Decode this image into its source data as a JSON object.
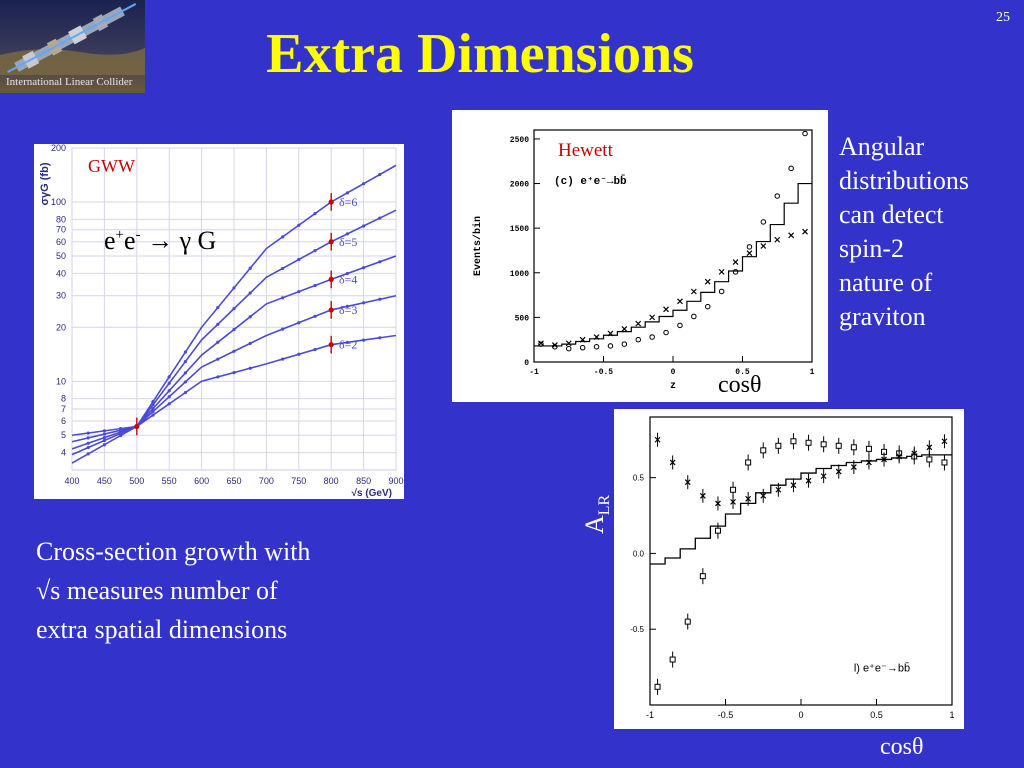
{
  "slide": {
    "title": "Extra Dimensions",
    "number": "25"
  },
  "logo": {
    "caption": "International Linear Collider"
  },
  "gww_plot": {
    "tag": "GWW",
    "process": {
      "e1": "e",
      "sup1": "+",
      "e2": "e",
      "sup2": "-",
      "rest": " → γ G"
    }
  },
  "hewett_plot": {
    "tag": "Hewett",
    "xlabel_below": "cosθ"
  },
  "texts": {
    "angular": [
      "Angular",
      "distributions",
      "can detect",
      "spin-2",
      "nature of",
      "graviton"
    ],
    "bottom": [
      "Cross-section growth with",
      "√s measures number of",
      "extra spatial dimensions"
    ],
    "alr_label": {
      "main": "A",
      "sub": "LR"
    },
    "cos_bottom": "cosθ"
  },
  "colors": {
    "background": "#3333cc",
    "title": "#ffff00",
    "accent_red": "#cc0000",
    "curve_blue": "#4a4ad8"
  },
  "chart_data": [
    {
      "type": "line",
      "ylabel": "σγG (fb)",
      "xlabel": "√s (GeV)",
      "xscale": "linear",
      "yscale": "log",
      "xlim": [
        400,
        900
      ],
      "ylim": [
        3.2,
        200
      ],
      "x_ticks": [
        "400",
        "450",
        "500",
        "550",
        "600",
        "650",
        "700",
        "750",
        "800",
        "850",
        "900"
      ],
      "y_ticks": [
        "4",
        "5",
        "6",
        "7",
        "8",
        "10",
        "20",
        "30",
        "40",
        "50",
        "60",
        "70",
        "80",
        "100",
        "200"
      ],
      "grid": true,
      "series": [
        {
          "name": "δ=6",
          "x": [
            400,
            500,
            600,
            700,
            800,
            900
          ],
          "y": [
            3.5,
            5.6,
            20,
            55,
            100,
            160
          ]
        },
        {
          "name": "δ=5",
          "x": [
            400,
            500,
            600,
            700,
            800,
            900
          ],
          "y": [
            3.9,
            5.6,
            17,
            38,
            60,
            90
          ]
        },
        {
          "name": "δ=4",
          "x": [
            400,
            500,
            600,
            700,
            800,
            900
          ],
          "y": [
            4.2,
            5.6,
            14,
            27,
            37,
            50
          ]
        },
        {
          "name": "δ=3",
          "x": [
            400,
            500,
            600,
            700,
            800,
            900
          ],
          "y": [
            4.6,
            5.6,
            12,
            18,
            25,
            30
          ]
        },
        {
          "name": "δ=2",
          "x": [
            400,
            500,
            600,
            700,
            800,
            900
          ],
          "y": [
            5.0,
            5.6,
            10,
            12.5,
            16,
            18
          ]
        }
      ],
      "markers": [
        {
          "x": 500,
          "y": 5.6
        },
        {
          "x": 800,
          "y": 100
        },
        {
          "x": 800,
          "y": 60
        },
        {
          "x": 800,
          "y": 37
        },
        {
          "x": 800,
          "y": 25
        },
        {
          "x": 800,
          "y": 16
        }
      ]
    },
    {
      "type": "scatter",
      "annotation": "(c) e⁺e⁻→bb̄",
      "ylabel": "Events/bin",
      "xlabel": "z",
      "xlim": [
        -1,
        1
      ],
      "ylim": [
        0,
        2600
      ],
      "x_ticks": [
        "-1",
        "-0.5",
        "0",
        "0.5",
        "1"
      ],
      "y_ticks": [
        "0",
        "500",
        "1000",
        "1500",
        "2000",
        "2500"
      ],
      "step": {
        "x": [
          -1,
          -0.9,
          -0.8,
          -0.7,
          -0.6,
          -0.5,
          -0.4,
          -0.3,
          -0.2,
          -0.1,
          0,
          0.1,
          0.2,
          0.3,
          0.4,
          0.5,
          0.6,
          0.7,
          0.8,
          0.9,
          1.0
        ],
        "y": [
          180,
          180,
          200,
          230,
          260,
          300,
          340,
          390,
          450,
          510,
          580,
          680,
          780,
          900,
          1020,
          1180,
          1350,
          1540,
          1780,
          2000,
          2000
        ]
      },
      "series": [
        {
          "marker": "circle",
          "x": [
            -0.95,
            -0.85,
            -0.75,
            -0.65,
            -0.55,
            -0.45,
            -0.35,
            -0.25,
            -0.15,
            -0.05,
            0.05,
            0.15,
            0.25,
            0.35,
            0.45,
            0.55,
            0.65,
            0.75,
            0.85,
            0.95
          ],
          "y": [
            200,
            170,
            150,
            160,
            170,
            180,
            200,
            250,
            280,
            330,
            410,
            510,
            620,
            790,
            1010,
            1290,
            1570,
            1860,
            2170,
            2560
          ]
        },
        {
          "marker": "cross",
          "x": [
            -0.95,
            -0.85,
            -0.75,
            -0.65,
            -0.55,
            -0.45,
            -0.35,
            -0.25,
            -0.15,
            -0.05,
            0.05,
            0.15,
            0.25,
            0.35,
            0.45,
            0.55,
            0.65,
            0.75,
            0.85,
            0.95
          ],
          "y": [
            210,
            190,
            210,
            250,
            280,
            320,
            370,
            430,
            500,
            590,
            680,
            790,
            900,
            1010,
            1120,
            1220,
            1300,
            1370,
            1420,
            1460
          ]
        }
      ]
    },
    {
      "type": "scatter",
      "annotation": "l) e⁺e⁻→bb̄",
      "xlim": [
        -1,
        1
      ],
      "ylim": [
        -1,
        0.9
      ],
      "x_ticks": [
        "-1",
        "-0.5",
        "0",
        "0.5",
        "1"
      ],
      "y_ticks": [
        "-0.5",
        "0.0",
        "0.5"
      ],
      "step": {
        "x": [
          -1,
          -0.9,
          -0.8,
          -0.7,
          -0.6,
          -0.5,
          -0.4,
          -0.3,
          -0.2,
          -0.1,
          0,
          0.1,
          0.2,
          0.3,
          0.4,
          0.5,
          0.6,
          0.7,
          0.8,
          0.9,
          1.0
        ],
        "y": [
          -0.07,
          -0.03,
          0.03,
          0.1,
          0.18,
          0.26,
          0.33,
          0.4,
          0.45,
          0.49,
          0.53,
          0.56,
          0.58,
          0.6,
          0.61,
          0.62,
          0.63,
          0.64,
          0.65,
          0.65,
          0.65
        ]
      },
      "series": [
        {
          "marker": "square",
          "x": [
            -0.95,
            -0.85,
            -0.75,
            -0.65,
            -0.55,
            -0.45,
            -0.35,
            -0.25,
            -0.15,
            -0.05,
            0.05,
            0.15,
            0.25,
            0.35,
            0.45,
            0.55,
            0.65,
            0.75,
            0.85,
            0.95
          ],
          "y": [
            -0.88,
            -0.7,
            -0.45,
            -0.15,
            0.15,
            0.42,
            0.6,
            0.68,
            0.71,
            0.74,
            0.73,
            0.72,
            0.71,
            0.7,
            0.69,
            0.67,
            0.66,
            0.64,
            0.62,
            0.6
          ]
        },
        {
          "marker": "cross",
          "x": [
            -0.95,
            -0.85,
            -0.75,
            -0.65,
            -0.55,
            -0.45,
            -0.35,
            -0.25,
            -0.15,
            -0.05,
            0.05,
            0.15,
            0.25,
            0.35,
            0.45,
            0.55,
            0.65,
            0.75,
            0.85,
            0.95
          ],
          "y": [
            0.75,
            0.6,
            0.47,
            0.38,
            0.33,
            0.34,
            0.36,
            0.38,
            0.42,
            0.45,
            0.48,
            0.51,
            0.54,
            0.57,
            0.6,
            0.62,
            0.64,
            0.66,
            0.7,
            0.74
          ]
        }
      ]
    }
  ]
}
